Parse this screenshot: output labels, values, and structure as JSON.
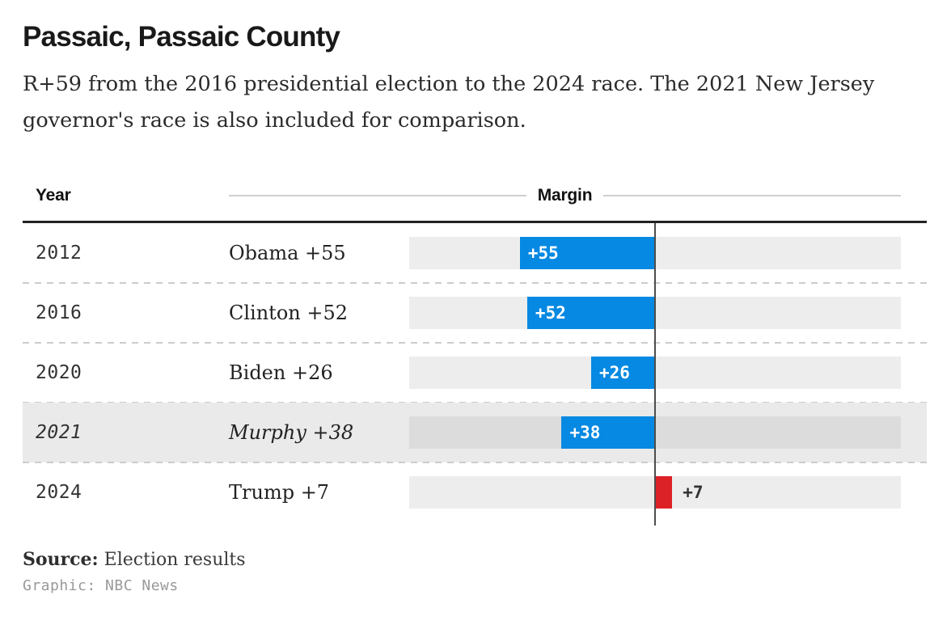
{
  "header": {
    "title": "Passaic, Passaic County",
    "subtitle_line1": "R+59 from the 2016 presidential election to the 2024 race. The 2021 New Jersey",
    "subtitle_line2": "governor's race is also included for comparison."
  },
  "table_header": {
    "year_label": "Year",
    "margin_label": "Margin"
  },
  "chart_data": {
    "type": "bar",
    "orientation": "horizontal",
    "axis_range": [
      -100,
      100
    ],
    "zero_baseline": "center of track",
    "legend": "none",
    "colors": {
      "dem": "#0689e2",
      "rep": "#dc2127",
      "track": "#ededed",
      "highlight_row": "#eaeaea"
    },
    "rows": [
      {
        "year": "2012",
        "candidate_label": "Obama +55",
        "party": "D",
        "margin": 55,
        "bar_label": "+55",
        "highlighted": false
      },
      {
        "year": "2016",
        "candidate_label": "Clinton +52",
        "party": "D",
        "margin": 52,
        "bar_label": "+52",
        "highlighted": false
      },
      {
        "year": "2020",
        "candidate_label": "Biden +26",
        "party": "D",
        "margin": 26,
        "bar_label": "+26",
        "highlighted": false
      },
      {
        "year": "2021",
        "candidate_label": "Murphy +38",
        "party": "D",
        "margin": 38,
        "bar_label": "+38",
        "highlighted": true
      },
      {
        "year": "2024",
        "candidate_label": "Trump +7",
        "party": "R",
        "margin": 7,
        "bar_label": "+7",
        "highlighted": false
      }
    ]
  },
  "footer": {
    "source_label": "Source:",
    "source_text": " Election results",
    "credit": "Graphic: NBC News"
  }
}
